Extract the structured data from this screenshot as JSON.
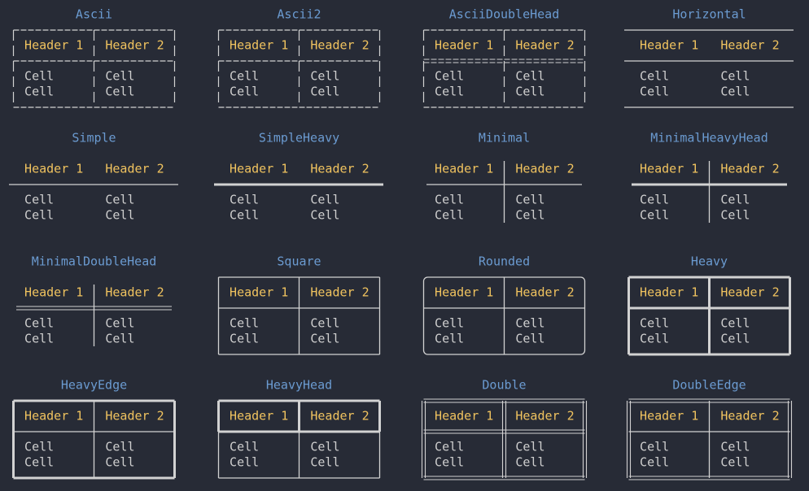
{
  "tables": [
    {
      "title": "Ascii",
      "header": [
        "Header 1",
        "Header 2"
      ],
      "rows": [
        [
          "Cell",
          "Cell"
        ],
        [
          "Cell",
          "Cell"
        ]
      ]
    },
    {
      "title": "Ascii2",
      "header": [
        "Header 1",
        "Header 2"
      ],
      "rows": [
        [
          "Cell",
          "Cell"
        ],
        [
          "Cell",
          "Cell"
        ]
      ]
    },
    {
      "title": "AsciiDoubleHead",
      "header": [
        "Header 1",
        "Header 2"
      ],
      "rows": [
        [
          "Cell",
          "Cell"
        ],
        [
          "Cell",
          "Cell"
        ]
      ]
    },
    {
      "title": "Horizontal",
      "header": [
        "Header 1",
        "Header 2"
      ],
      "rows": [
        [
          "Cell",
          "Cell"
        ],
        [
          "Cell",
          "Cell"
        ]
      ]
    },
    {
      "title": "Simple",
      "header": [
        "Header 1",
        "Header 2"
      ],
      "rows": [
        [
          "Cell",
          "Cell"
        ],
        [
          "Cell",
          "Cell"
        ]
      ]
    },
    {
      "title": "SimpleHeavy",
      "header": [
        "Header 1",
        "Header 2"
      ],
      "rows": [
        [
          "Cell",
          "Cell"
        ],
        [
          "Cell",
          "Cell"
        ]
      ]
    },
    {
      "title": "Minimal",
      "header": [
        "Header 1",
        "Header 2"
      ],
      "rows": [
        [
          "Cell",
          "Cell"
        ],
        [
          "Cell",
          "Cell"
        ]
      ]
    },
    {
      "title": "MinimalHeavyHead",
      "header": [
        "Header 1",
        "Header 2"
      ],
      "rows": [
        [
          "Cell",
          "Cell"
        ],
        [
          "Cell",
          "Cell"
        ]
      ]
    },
    {
      "title": "MinimalDoubleHead",
      "header": [
        "Header 1",
        "Header 2"
      ],
      "rows": [
        [
          "Cell",
          "Cell"
        ],
        [
          "Cell",
          "Cell"
        ]
      ]
    },
    {
      "title": "Square",
      "header": [
        "Header 1",
        "Header 2"
      ],
      "rows": [
        [
          "Cell",
          "Cell"
        ],
        [
          "Cell",
          "Cell"
        ]
      ]
    },
    {
      "title": "Rounded",
      "header": [
        "Header 1",
        "Header 2"
      ],
      "rows": [
        [
          "Cell",
          "Cell"
        ],
        [
          "Cell",
          "Cell"
        ]
      ]
    },
    {
      "title": "Heavy",
      "header": [
        "Header 1",
        "Header 2"
      ],
      "rows": [
        [
          "Cell",
          "Cell"
        ],
        [
          "Cell",
          "Cell"
        ]
      ]
    },
    {
      "title": "HeavyEdge",
      "header": [
        "Header 1",
        "Header 2"
      ],
      "rows": [
        [
          "Cell",
          "Cell"
        ],
        [
          "Cell",
          "Cell"
        ]
      ]
    },
    {
      "title": "HeavyHead",
      "header": [
        "Header 1",
        "Header 2"
      ],
      "rows": [
        [
          "Cell",
          "Cell"
        ],
        [
          "Cell",
          "Cell"
        ]
      ]
    },
    {
      "title": "Double",
      "header": [
        "Header 1",
        "Header 2"
      ],
      "rows": [
        [
          "Cell",
          "Cell"
        ],
        [
          "Cell",
          "Cell"
        ]
      ]
    },
    {
      "title": "DoubleEdge",
      "header": [
        "Header 1",
        "Header 2"
      ],
      "rows": [
        [
          "Cell",
          "Cell"
        ],
        [
          "Cell",
          "Cell"
        ]
      ]
    }
  ]
}
